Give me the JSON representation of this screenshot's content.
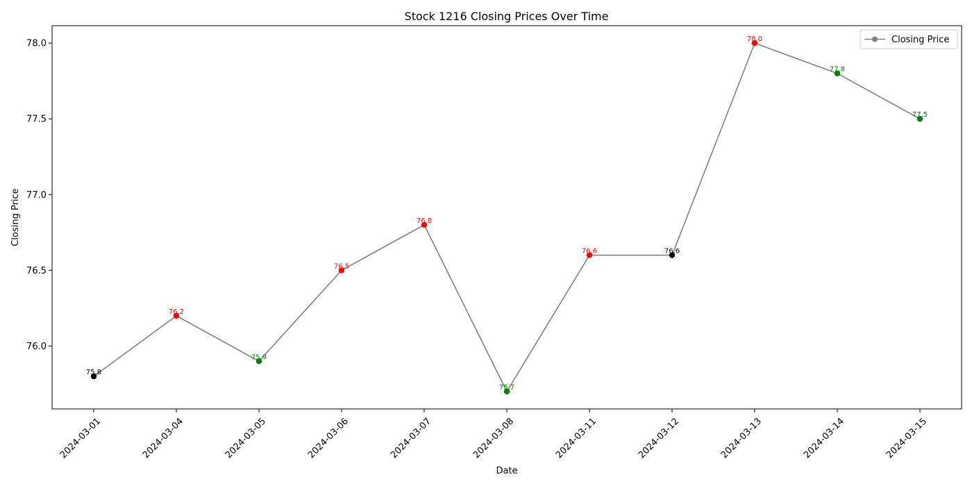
{
  "chart_data": {
    "type": "line",
    "title": "Stock 1216 Closing Prices Over Time",
    "xlabel": "Date",
    "ylabel": "Closing Price",
    "ylim": [
      75.585,
      78.115
    ],
    "yticks": [
      76.0,
      76.5,
      77.0,
      77.5,
      78.0
    ],
    "ytick_labels": [
      "76.0",
      "76.5",
      "77.0",
      "77.5",
      "78.0"
    ],
    "x": [
      "2024-03-01",
      "2024-03-04",
      "2024-03-05",
      "2024-03-06",
      "2024-03-07",
      "2024-03-08",
      "2024-03-11",
      "2024-03-12",
      "2024-03-13",
      "2024-03-14",
      "2024-03-15"
    ],
    "series": [
      {
        "name": "Closing Price",
        "values": [
          75.8,
          76.2,
          75.9,
          76.5,
          76.8,
          75.7,
          76.6,
          76.6,
          78.0,
          77.8,
          77.5
        ],
        "point_labels": [
          "75.8",
          "76.2",
          "75.9",
          "76.5",
          "76.8",
          "75.7",
          "76.6",
          "76.6",
          "78.0",
          "77.8",
          "77.5"
        ],
        "point_colors": [
          "#000000",
          "#ff0000",
          "#008000",
          "#ff0000",
          "#ff0000",
          "#008000",
          "#ff0000",
          "#000000",
          "#ff0000",
          "#008000",
          "#008000"
        ],
        "line_color": "#808080"
      }
    ],
    "legend": {
      "position": "top-right",
      "marker_color": "#808080"
    },
    "grid": false
  }
}
